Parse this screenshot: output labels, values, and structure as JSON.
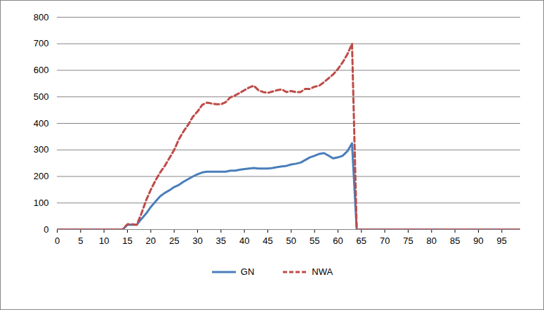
{
  "chart_data": {
    "type": "line",
    "x": [
      0,
      1,
      2,
      3,
      4,
      5,
      6,
      7,
      8,
      9,
      10,
      11,
      12,
      13,
      14,
      15,
      16,
      17,
      18,
      19,
      20,
      21,
      22,
      23,
      24,
      25,
      26,
      27,
      28,
      29,
      30,
      31,
      32,
      33,
      34,
      35,
      36,
      37,
      38,
      39,
      40,
      41,
      42,
      43,
      44,
      45,
      46,
      47,
      48,
      49,
      50,
      51,
      52,
      53,
      54,
      55,
      56,
      57,
      58,
      59,
      60,
      61,
      62,
      63,
      64,
      65,
      66,
      67,
      68,
      69,
      70,
      71,
      72,
      73,
      74,
      75,
      76,
      77,
      78,
      79,
      80,
      81,
      82,
      83,
      84,
      85,
      86,
      87,
      88,
      89,
      90,
      91,
      92,
      93,
      94,
      95,
      96,
      97,
      98,
      99
    ],
    "series": [
      {
        "name": "GN",
        "color": "#4a7ebb",
        "line_style": "solid",
        "values": [
          0,
          0,
          0,
          0,
          0,
          0,
          0,
          0,
          0,
          0,
          0,
          0,
          0,
          0,
          0,
          18,
          18,
          18,
          40,
          60,
          85,
          105,
          125,
          138,
          148,
          160,
          168,
          180,
          190,
          200,
          208,
          215,
          218,
          218,
          218,
          218,
          218,
          222,
          222,
          225,
          228,
          230,
          232,
          230,
          230,
          230,
          232,
          235,
          238,
          240,
          245,
          248,
          252,
          262,
          272,
          278,
          285,
          288,
          278,
          268,
          272,
          278,
          295,
          325,
          0,
          0,
          0,
          0,
          0,
          0,
          0,
          0,
          0,
          0,
          0,
          0,
          0,
          0,
          0,
          0,
          0,
          0,
          0,
          0,
          0,
          0,
          0,
          0,
          0,
          0,
          0,
          0,
          0,
          0,
          0,
          0,
          0,
          0,
          0,
          0
        ]
      },
      {
        "name": "NWA",
        "color": "#be4b48",
        "line_style": "dashed",
        "values": [
          0,
          0,
          0,
          0,
          0,
          0,
          0,
          0,
          0,
          0,
          0,
          0,
          0,
          0,
          0,
          20,
          20,
          18,
          60,
          110,
          150,
          185,
          215,
          240,
          270,
          300,
          340,
          370,
          395,
          425,
          445,
          470,
          478,
          475,
          472,
          472,
          480,
          498,
          505,
          515,
          525,
          535,
          542,
          525,
          518,
          515,
          520,
          525,
          528,
          518,
          522,
          518,
          518,
          530,
          530,
          538,
          542,
          555,
          570,
          585,
          605,
          630,
          660,
          700,
          0,
          0,
          0,
          0,
          0,
          0,
          0,
          0,
          0,
          0,
          0,
          0,
          0,
          0,
          0,
          0,
          0,
          0,
          0,
          0,
          0,
          0,
          0,
          0,
          0,
          0,
          0,
          0,
          0,
          0,
          0,
          0,
          0,
          0,
          0,
          0
        ]
      }
    ],
    "xlim": [
      0,
      99
    ],
    "xticks": [
      0,
      5,
      10,
      15,
      20,
      25,
      30,
      35,
      40,
      45,
      50,
      55,
      60,
      65,
      70,
      75,
      80,
      85,
      90,
      95
    ],
    "ylim": [
      0,
      800
    ],
    "yticks": [
      0,
      100,
      200,
      300,
      400,
      500,
      600,
      700,
      800
    ],
    "grid": true,
    "legend": "bottom"
  }
}
